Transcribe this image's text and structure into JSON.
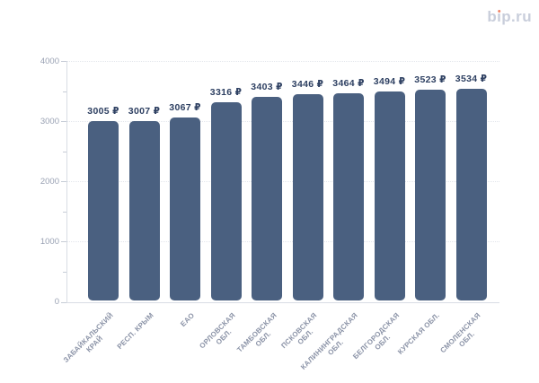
{
  "logo": {
    "text": "bip.ru",
    "color": "#c9cedb",
    "dot_color": "#f08568"
  },
  "chart_data": {
    "type": "bar",
    "title": "",
    "xlabel": "",
    "ylabel": "",
    "categories": [
      "Забайкальский край",
      "Респ. Крым",
      "ЕАО",
      "Орловская обл.",
      "Тамбовская обл.",
      "Псковская обл.",
      "Калининградская обл.",
      "Белгородская обл.",
      "Курская обл.",
      "Смоленская обл."
    ],
    "values": [
      3005,
      3007,
      3067,
      3316,
      3403,
      3446,
      3464,
      3494,
      3523,
      3534
    ],
    "value_labels": [
      "3005 ₽",
      "3007 ₽",
      "3067 ₽",
      "3316 ₽",
      "3403 ₽",
      "3446 ₽",
      "3464 ₽",
      "3494 ₽",
      "3523 ₽",
      "3534 ₽"
    ],
    "x_tick_lines": [
      [
        "ЗАБАЙКАЛЬСКИЙ",
        "КРАЙ"
      ],
      [
        "РЕСП. КРЫМ"
      ],
      [
        "ЕАО"
      ],
      [
        "ОРЛОВСКАЯ",
        "ОБЛ."
      ],
      [
        "ТАМБОВСКАЯ",
        "ОБЛ."
      ],
      [
        "ПСКОВСКАЯ",
        "ОБЛ."
      ],
      [
        "КАЛИНИНГРАДСКАЯ",
        "ОБЛ."
      ],
      [
        "БЕЛГОРОДСКАЯ",
        "ОБЛ."
      ],
      [
        "КУРСКАЯ ОБЛ."
      ],
      [
        "СМОЛЕНСКАЯ",
        "ОБЛ."
      ]
    ],
    "y_ticks": [
      0,
      1000,
      2000,
      3000,
      4000
    ],
    "y_minor_ticks": [
      500,
      1500,
      2500,
      3500
    ],
    "ylim": [
      0,
      4000
    ],
    "grid": "horizontal-dotted",
    "legend": "none",
    "colors": {
      "bar_fill": "#4a6080",
      "value_label": "#2e4062",
      "y_axis_label": "#99a1b3",
      "x_axis_label": "#8b93a7",
      "gridline": "#e3e6ec",
      "axis_line": "#d9dde4",
      "tick_mark": "#c6ccd6"
    }
  }
}
